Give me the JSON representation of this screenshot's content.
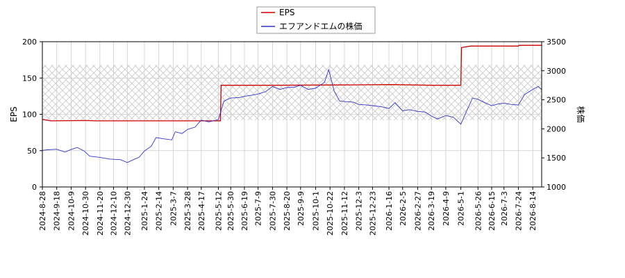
{
  "chart_data": {
    "type": "line",
    "xlabel": "",
    "ylabel": "EPS",
    "y2label": "株価",
    "ylim": [
      0,
      200
    ],
    "y2lim": [
      1000,
      3500
    ],
    "yticks": [
      0,
      50,
      100,
      150,
      200
    ],
    "y2ticks": [
      1000,
      1500,
      2000,
      2500,
      3000,
      3500
    ],
    "xlim": [
      "2024-08-28",
      "2026-08-27"
    ],
    "xticks": [
      "2024-8-28",
      "2024-9-18",
      "2024-10-9",
      "2024-10-30",
      "2024-11-20",
      "2024-12-10",
      "2024-12-30",
      "2025-1-24",
      "2025-2-14",
      "2025-3-7",
      "2025-3-28",
      "2025-4-17",
      "2025-5-12",
      "2025-5-30",
      "2025-6-19",
      "2025-7-9",
      "2025-7-30",
      "2025-8-20",
      "2025-9-9",
      "2025-10-1",
      "2025-10-22",
      "2025-11-12",
      "2025-12-3",
      "2025-12-23",
      "2026-1-16",
      "2026-2-5",
      "2026-2-27",
      "2026-3-19",
      "2026-4-9",
      "2026-5-1",
      "2026-5-26",
      "2026-6-15",
      "2026-7-3",
      "2026-7-24",
      "2026-8-14"
    ],
    "grid": true,
    "legend_position": "top-center",
    "band": {
      "y2_from": 2150,
      "y2_to": 3100
    },
    "series": [
      {
        "name": "EPS",
        "axis": "left",
        "color": "#cc0000",
        "points": [
          [
            "2024-08-28",
            93
          ],
          [
            "2024-09-10",
            91
          ],
          [
            "2024-10-30",
            91.5
          ],
          [
            "2024-11-15",
            91
          ],
          [
            "2025-01-10",
            91
          ],
          [
            "2025-03-10",
            91
          ],
          [
            "2025-05-15",
            91
          ],
          [
            "2025-05-16",
            140
          ],
          [
            "2025-08-01",
            140
          ],
          [
            "2025-11-12",
            140.5
          ],
          [
            "2026-01-20",
            141
          ],
          [
            "2026-03-20",
            140
          ],
          [
            "2026-05-01",
            140
          ],
          [
            "2026-05-02",
            192
          ],
          [
            "2026-05-15",
            194
          ],
          [
            "2026-07-24",
            194
          ],
          [
            "2026-07-25",
            195
          ],
          [
            "2026-08-27",
            195
          ]
        ]
      },
      {
        "name": "エフアンドエムの株価",
        "axis": "right",
        "color": "#3333cc",
        "points": [
          [
            "2024-08-28",
            1630
          ],
          [
            "2024-09-05",
            1640
          ],
          [
            "2024-09-18",
            1650
          ],
          [
            "2024-09-30",
            1600
          ],
          [
            "2024-10-10",
            1650
          ],
          [
            "2024-10-18",
            1680
          ],
          [
            "2024-10-28",
            1620
          ],
          [
            "2024-11-05",
            1530
          ],
          [
            "2024-11-20",
            1510
          ],
          [
            "2024-12-05",
            1480
          ],
          [
            "2024-12-20",
            1470
          ],
          [
            "2024-12-30",
            1420
          ],
          [
            "2025-01-08",
            1470
          ],
          [
            "2025-01-16",
            1510
          ],
          [
            "2025-01-24",
            1620
          ],
          [
            "2025-02-03",
            1700
          ],
          [
            "2025-02-10",
            1850
          ],
          [
            "2025-02-20",
            1830
          ],
          [
            "2025-03-05",
            1810
          ],
          [
            "2025-03-10",
            1950
          ],
          [
            "2025-03-20",
            1920
          ],
          [
            "2025-03-28",
            1990
          ],
          [
            "2025-04-08",
            2030
          ],
          [
            "2025-04-17",
            2150
          ],
          [
            "2025-04-28",
            2120
          ],
          [
            "2025-05-12",
            2160
          ],
          [
            "2025-05-20",
            2480
          ],
          [
            "2025-05-30",
            2530
          ],
          [
            "2025-06-12",
            2540
          ],
          [
            "2025-06-19",
            2560
          ],
          [
            "2025-06-30",
            2580
          ],
          [
            "2025-07-09",
            2600
          ],
          [
            "2025-07-20",
            2640
          ],
          [
            "2025-07-30",
            2730
          ],
          [
            "2025-08-10",
            2680
          ],
          [
            "2025-08-20",
            2710
          ],
          [
            "2025-09-01",
            2720
          ],
          [
            "2025-09-09",
            2750
          ],
          [
            "2025-09-20",
            2680
          ],
          [
            "2025-10-01",
            2700
          ],
          [
            "2025-10-14",
            2800
          ],
          [
            "2025-10-20",
            3020
          ],
          [
            "2025-10-28",
            2650
          ],
          [
            "2025-11-05",
            2480
          ],
          [
            "2025-11-12",
            2470
          ],
          [
            "2025-11-25",
            2460
          ],
          [
            "2025-12-03",
            2420
          ],
          [
            "2025-12-15",
            2410
          ],
          [
            "2025-12-23",
            2400
          ],
          [
            "2026-01-05",
            2380
          ],
          [
            "2026-01-16",
            2350
          ],
          [
            "2026-01-25",
            2450
          ],
          [
            "2026-02-05",
            2310
          ],
          [
            "2026-02-15",
            2330
          ],
          [
            "2026-02-27",
            2300
          ],
          [
            "2026-03-10",
            2290
          ],
          [
            "2026-03-19",
            2220
          ],
          [
            "2026-03-28",
            2170
          ],
          [
            "2026-04-09",
            2230
          ],
          [
            "2026-04-20",
            2200
          ],
          [
            "2026-05-01",
            2080
          ],
          [
            "2026-05-10",
            2320
          ],
          [
            "2026-05-18",
            2530
          ],
          [
            "2026-05-26",
            2510
          ],
          [
            "2026-06-05",
            2450
          ],
          [
            "2026-06-15",
            2400
          ],
          [
            "2026-06-25",
            2430
          ],
          [
            "2026-07-03",
            2440
          ],
          [
            "2026-07-14",
            2420
          ],
          [
            "2026-07-24",
            2410
          ],
          [
            "2026-08-02",
            2590
          ],
          [
            "2026-08-14",
            2680
          ],
          [
            "2026-08-22",
            2730
          ],
          [
            "2026-08-27",
            2680
          ]
        ]
      }
    ]
  }
}
